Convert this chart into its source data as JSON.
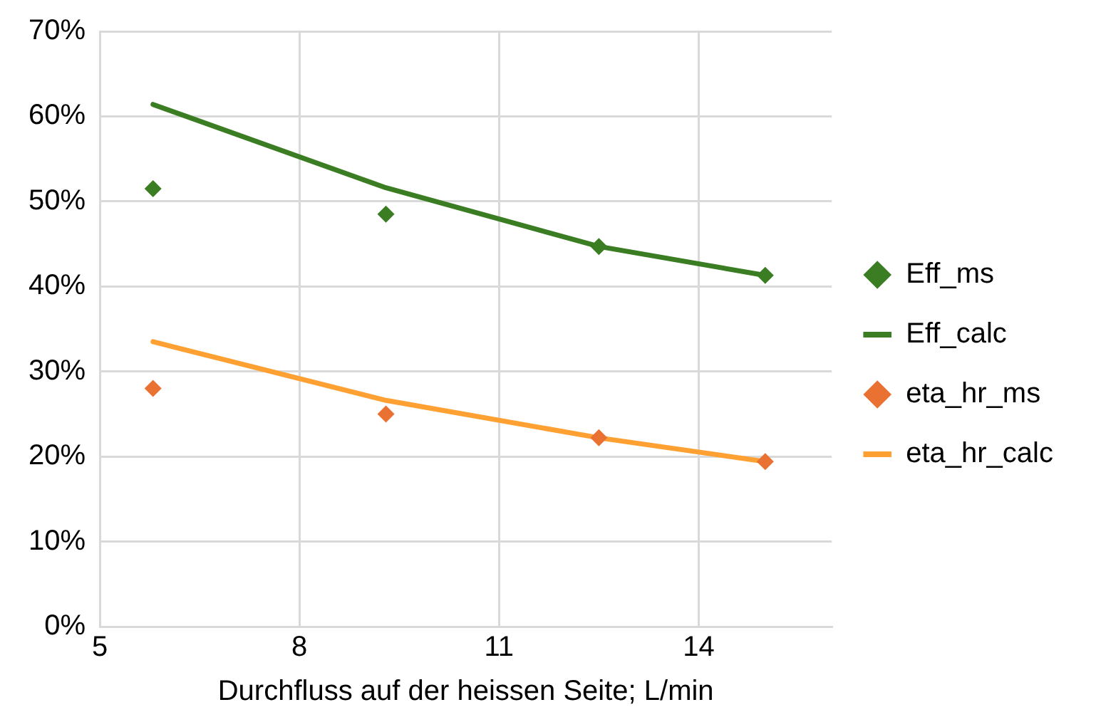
{
  "chart_data": {
    "type": "line",
    "xlabel": "Durchfluss auf der heissen Seite; L/min",
    "x": [
      5.8,
      9.3,
      12.5,
      15
    ],
    "xlim": [
      5,
      16
    ],
    "xticks": [
      5,
      8,
      11,
      14
    ],
    "ylim": [
      0,
      70
    ],
    "yticks": [
      {
        "value": 0,
        "label": "0%"
      },
      {
        "value": 10,
        "label": "10%"
      },
      {
        "value": 20,
        "label": "20%"
      },
      {
        "value": 30,
        "label": "30%"
      },
      {
        "value": 40,
        "label": "40%"
      },
      {
        "value": 50,
        "label": "50%"
      },
      {
        "value": 60,
        "label": "60%"
      },
      {
        "value": 70,
        "label": "70%"
      }
    ],
    "grid": true,
    "legend": "right",
    "series": [
      {
        "name": "Eff_ms",
        "type": "scatter",
        "marker": "diamond",
        "color": "#3a7d22",
        "values": [
          51.5,
          48.5,
          44.7,
          41.3
        ]
      },
      {
        "name": "Eff_calc",
        "type": "line",
        "marker": "none",
        "line_style": "solid",
        "color": "#3a7d22",
        "values": [
          61.4,
          51.6,
          44.7,
          41.3
        ]
      },
      {
        "name": "eta_hr_ms",
        "type": "scatter",
        "marker": "diamond",
        "color": "#e97132",
        "values": [
          28.0,
          25.0,
          22.2,
          19.4
        ]
      },
      {
        "name": "eta_hr_calc",
        "type": "line",
        "marker": "none",
        "line_style": "solid",
        "color": "#ffa033",
        "values": [
          33.5,
          26.6,
          22.2,
          19.4
        ]
      }
    ]
  }
}
